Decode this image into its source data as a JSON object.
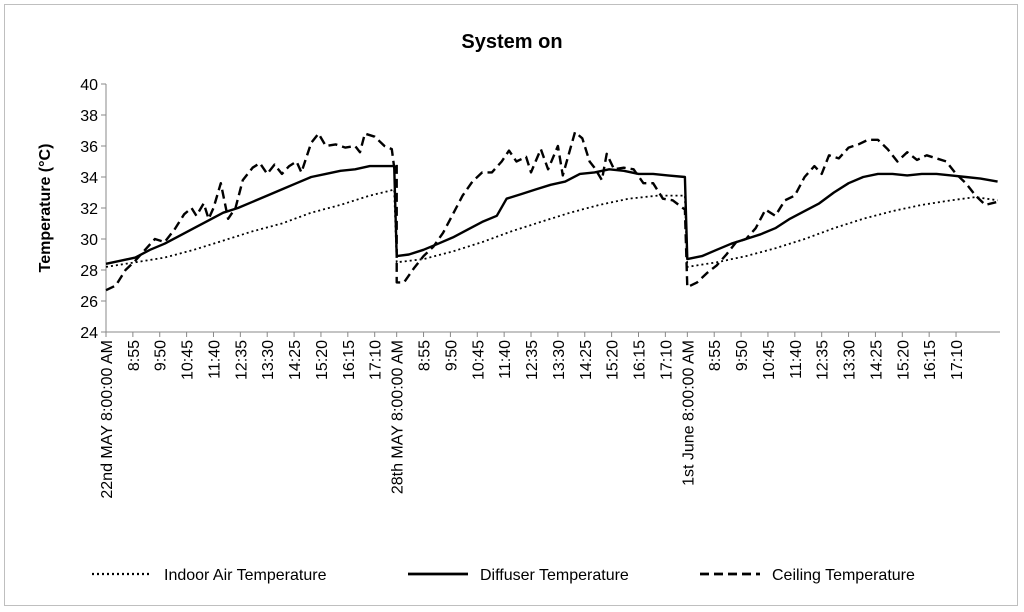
{
  "chart_data": {
    "type": "line",
    "title": "System on",
    "xlabel": "",
    "ylabel": "Temperature (°C)",
    "ylim": [
      24,
      40
    ],
    "yticks": [
      24,
      26,
      28,
      30,
      32,
      34,
      36,
      38,
      40
    ],
    "grid": false,
    "legend_position": "bottom",
    "x_tick_labels": [
      "22nd MAY 8:00:00 AM",
      "8:55",
      "9:50",
      "10:45",
      "11:40",
      "12:35",
      "13:30",
      "14:25",
      "15:20",
      "16:15",
      "17:10",
      "28th MAY 8:00:00 AM",
      "8:55",
      "9:50",
      "10:45",
      "11:40",
      "12:35",
      "13:30",
      "14:25",
      "15:20",
      "16:15",
      "17:10",
      "1st June 8:00:00 AM",
      "8:55",
      "9:50",
      "10:45",
      "11:40",
      "12:35",
      "13:30",
      "14:25",
      "15:20",
      "16:15",
      "17:10"
    ],
    "x_tick_positions": [
      0,
      11,
      22,
      33,
      44,
      55,
      66,
      77,
      88,
      99,
      110,
      119,
      130,
      141,
      152,
      163,
      174,
      185,
      196,
      207,
      218,
      229,
      238,
      249,
      260,
      271,
      282,
      293,
      304,
      315,
      326,
      337,
      348
    ],
    "x_range": [
      0,
      366
    ],
    "series": [
      {
        "name": "Indoor Air Temperature",
        "style": "dotted",
        "points": [
          [
            0,
            28.2
          ],
          [
            12,
            28.5
          ],
          [
            24,
            28.8
          ],
          [
            36,
            29.3
          ],
          [
            48,
            29.9
          ],
          [
            60,
            30.5
          ],
          [
            72,
            31.0
          ],
          [
            84,
            31.7
          ],
          [
            96,
            32.2
          ],
          [
            108,
            32.8
          ],
          [
            116,
            33.1
          ],
          [
            118,
            33.2
          ],
          [
            119,
            28.5
          ],
          [
            130,
            28.7
          ],
          [
            142,
            29.2
          ],
          [
            154,
            29.8
          ],
          [
            166,
            30.5
          ],
          [
            178,
            31.1
          ],
          [
            190,
            31.7
          ],
          [
            202,
            32.2
          ],
          [
            214,
            32.6
          ],
          [
            226,
            32.8
          ],
          [
            237,
            32.8
          ],
          [
            238,
            28.2
          ],
          [
            250,
            28.5
          ],
          [
            262,
            28.9
          ],
          [
            274,
            29.4
          ],
          [
            286,
            30.0
          ],
          [
            298,
            30.7
          ],
          [
            310,
            31.3
          ],
          [
            322,
            31.8
          ],
          [
            334,
            32.2
          ],
          [
            346,
            32.5
          ],
          [
            356,
            32.7
          ],
          [
            365,
            32.5
          ]
        ]
      },
      {
        "name": "Diffuser Temperature",
        "style": "solid",
        "points": [
          [
            0,
            28.4
          ],
          [
            6,
            28.6
          ],
          [
            12,
            28.8
          ],
          [
            18,
            29.3
          ],
          [
            24,
            29.7
          ],
          [
            30,
            30.2
          ],
          [
            36,
            30.7
          ],
          [
            42,
            31.2
          ],
          [
            48,
            31.7
          ],
          [
            54,
            32.0
          ],
          [
            60,
            32.4
          ],
          [
            66,
            32.8
          ],
          [
            72,
            33.2
          ],
          [
            78,
            33.6
          ],
          [
            84,
            34.0
          ],
          [
            90,
            34.2
          ],
          [
            96,
            34.4
          ],
          [
            102,
            34.5
          ],
          [
            108,
            34.7
          ],
          [
            114,
            34.7
          ],
          [
            118,
            34.7
          ],
          [
            119,
            28.9
          ],
          [
            124,
            29.0
          ],
          [
            130,
            29.3
          ],
          [
            136,
            29.7
          ],
          [
            142,
            30.1
          ],
          [
            148,
            30.6
          ],
          [
            154,
            31.1
          ],
          [
            160,
            31.5
          ],
          [
            164,
            32.6
          ],
          [
            170,
            32.9
          ],
          [
            176,
            33.2
          ],
          [
            182,
            33.5
          ],
          [
            188,
            33.7
          ],
          [
            194,
            34.2
          ],
          [
            200,
            34.3
          ],
          [
            206,
            34.5
          ],
          [
            212,
            34.4
          ],
          [
            218,
            34.2
          ],
          [
            224,
            34.2
          ],
          [
            230,
            34.1
          ],
          [
            237,
            34.0
          ],
          [
            238,
            28.7
          ],
          [
            244,
            28.9
          ],
          [
            250,
            29.3
          ],
          [
            256,
            29.7
          ],
          [
            262,
            30.0
          ],
          [
            268,
            30.3
          ],
          [
            274,
            30.7
          ],
          [
            280,
            31.3
          ],
          [
            286,
            31.8
          ],
          [
            292,
            32.3
          ],
          [
            298,
            33.0
          ],
          [
            304,
            33.6
          ],
          [
            310,
            34.0
          ],
          [
            316,
            34.2
          ],
          [
            322,
            34.2
          ],
          [
            328,
            34.1
          ],
          [
            334,
            34.2
          ],
          [
            340,
            34.2
          ],
          [
            346,
            34.1
          ],
          [
            352,
            34.0
          ],
          [
            358,
            33.9
          ],
          [
            365,
            33.7
          ]
        ]
      },
      {
        "name": "Ceiling Temperature",
        "style": "dashed",
        "points": [
          [
            0,
            26.7
          ],
          [
            4,
            27.0
          ],
          [
            8,
            28.0
          ],
          [
            12,
            28.6
          ],
          [
            16,
            29.3
          ],
          [
            20,
            30.0
          ],
          [
            24,
            29.8
          ],
          [
            28,
            30.6
          ],
          [
            32,
            31.6
          ],
          [
            35,
            32.0
          ],
          [
            37,
            31.5
          ],
          [
            40,
            32.3
          ],
          [
            42,
            31.3
          ],
          [
            44,
            32.0
          ],
          [
            47,
            33.6
          ],
          [
            50,
            31.3
          ],
          [
            53,
            32.0
          ],
          [
            56,
            33.8
          ],
          [
            60,
            34.6
          ],
          [
            63,
            34.9
          ],
          [
            66,
            34.2
          ],
          [
            69,
            34.8
          ],
          [
            72,
            34.2
          ],
          [
            75,
            34.7
          ],
          [
            78,
            35.0
          ],
          [
            80,
            34.3
          ],
          [
            84,
            36.2
          ],
          [
            87,
            36.8
          ],
          [
            90,
            36.0
          ],
          [
            94,
            36.1
          ],
          [
            98,
            35.9
          ],
          [
            102,
            36.0
          ],
          [
            104,
            35.6
          ],
          [
            106,
            36.8
          ],
          [
            110,
            36.6
          ],
          [
            114,
            36.0
          ],
          [
            117,
            35.8
          ],
          [
            118,
            34.6
          ],
          [
            119,
            34.9
          ],
          [
            119,
            27.2
          ],
          [
            122,
            27.2
          ],
          [
            126,
            28.1
          ],
          [
            130,
            28.9
          ],
          [
            134,
            29.5
          ],
          [
            138,
            30.4
          ],
          [
            142,
            31.6
          ],
          [
            146,
            32.8
          ],
          [
            150,
            33.7
          ],
          [
            154,
            34.3
          ],
          [
            158,
            34.3
          ],
          [
            162,
            35.0
          ],
          [
            165,
            35.7
          ],
          [
            168,
            35.0
          ],
          [
            172,
            35.3
          ],
          [
            174,
            34.3
          ],
          [
            178,
            35.8
          ],
          [
            181,
            34.5
          ],
          [
            185,
            36.0
          ],
          [
            187,
            34.1
          ],
          [
            192,
            36.9
          ],
          [
            195,
            36.5
          ],
          [
            198,
            35.0
          ],
          [
            200,
            34.6
          ],
          [
            203,
            33.8
          ],
          [
            205,
            35.5
          ],
          [
            208,
            34.5
          ],
          [
            212,
            34.6
          ],
          [
            216,
            34.5
          ],
          [
            220,
            33.6
          ],
          [
            224,
            33.6
          ],
          [
            228,
            32.6
          ],
          [
            232,
            32.5
          ],
          [
            237,
            31.9
          ],
          [
            238,
            26.9
          ],
          [
            242,
            27.2
          ],
          [
            246,
            27.8
          ],
          [
            250,
            28.3
          ],
          [
            254,
            29.0
          ],
          [
            258,
            29.8
          ],
          [
            262,
            30.0
          ],
          [
            266,
            30.7
          ],
          [
            270,
            31.9
          ],
          [
            274,
            31.5
          ],
          [
            278,
            32.5
          ],
          [
            282,
            32.8
          ],
          [
            286,
            34.0
          ],
          [
            290,
            34.7
          ],
          [
            293,
            34.2
          ],
          [
            296,
            35.4
          ],
          [
            300,
            35.2
          ],
          [
            304,
            35.9
          ],
          [
            308,
            36.1
          ],
          [
            312,
            36.4
          ],
          [
            316,
            36.4
          ],
          [
            320,
            35.8
          ],
          [
            324,
            35.0
          ],
          [
            328,
            35.6
          ],
          [
            332,
            35.1
          ],
          [
            336,
            35.4
          ],
          [
            340,
            35.2
          ],
          [
            344,
            35.0
          ],
          [
            348,
            34.2
          ],
          [
            352,
            33.6
          ],
          [
            356,
            32.8
          ],
          [
            360,
            32.2
          ],
          [
            365,
            32.4
          ]
        ]
      }
    ]
  }
}
